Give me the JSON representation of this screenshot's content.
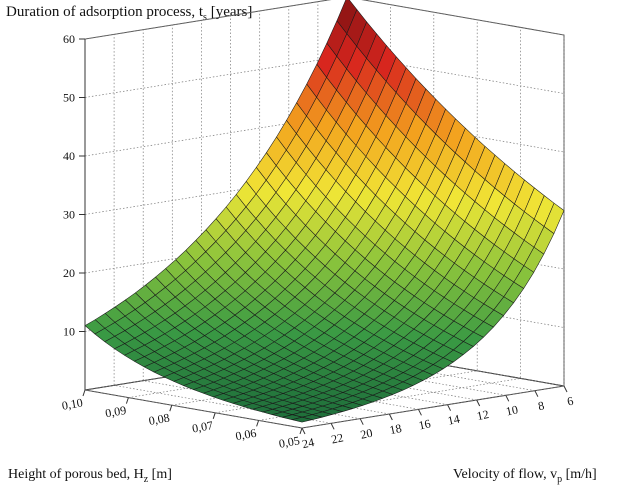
{
  "chart_data": {
    "type": "surface",
    "title": "Duration of adsorption process, t",
    "title_sub": "s",
    "title_unit": " [years]",
    "x_axis": {
      "label": "Height of porous bed, H",
      "label_sub": "z",
      "label_unit": " [m]",
      "range": [
        0.05,
        0.1
      ],
      "ticks": [
        "0,10",
        "0,09",
        "0,08",
        "0,07",
        "0,06",
        "0,05"
      ],
      "tick_values": [
        0.1,
        0.09,
        0.08,
        0.07,
        0.06,
        0.05
      ]
    },
    "y_axis": {
      "label": "Velocity of flow, v",
      "label_sub": "p",
      "label_unit": " [m/h]",
      "range": [
        6,
        24
      ],
      "ticks": [
        "6",
        "8",
        "10",
        "12",
        "14",
        "16",
        "18",
        "20",
        "22",
        "24"
      ],
      "tick_values": [
        6,
        8,
        10,
        12,
        14,
        16,
        18,
        20,
        22,
        24
      ]
    },
    "z_axis": {
      "range": [
        0,
        60
      ],
      "ticks": [
        "10",
        "20",
        "30",
        "40",
        "50",
        "60"
      ],
      "tick_values": [
        10,
        20,
        30,
        40,
        50,
        60
      ]
    },
    "corner_values": {
      "H_0.10_v_24": 11,
      "H_0.10_v_6": 60,
      "H_0.05_v_24": 1,
      "H_0.05_v_6": 30
    },
    "colormap": [
      "#1c6a3a",
      "#3a9a44",
      "#8cc43c",
      "#f0e636",
      "#f3a21e",
      "#d8261e",
      "#7a0f12"
    ],
    "grid": true
  }
}
